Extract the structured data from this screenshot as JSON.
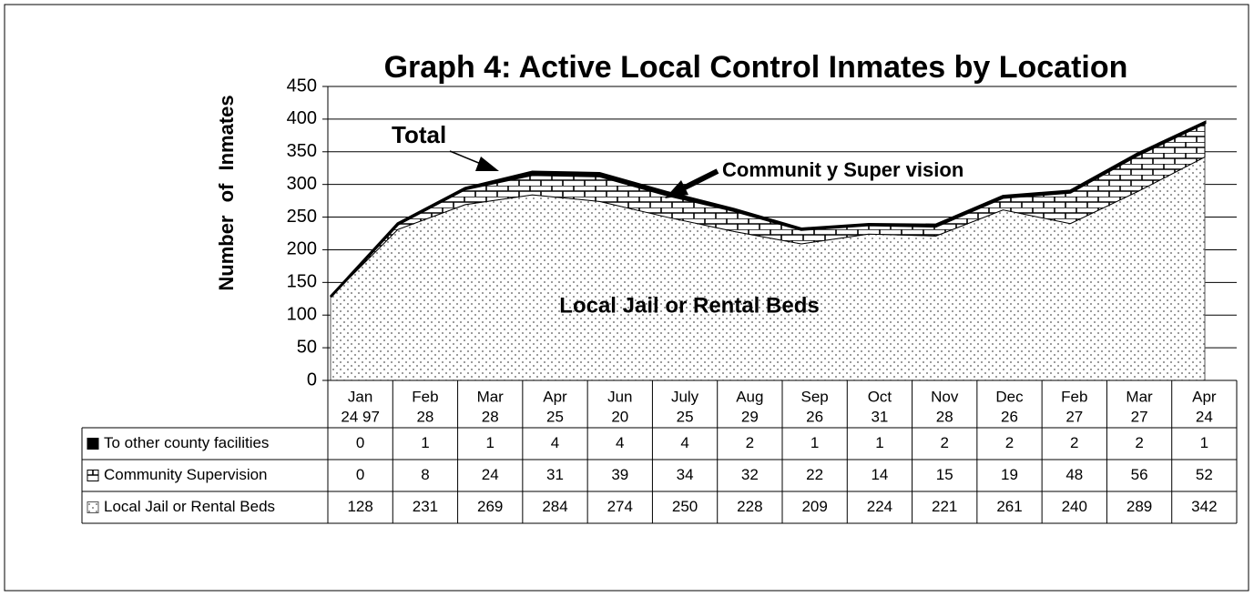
{
  "chart_data": {
    "type": "stacked_area",
    "title": "Graph 4: Active Local Control Inmates by Location",
    "y_label": "Number of Inmates",
    "annotations": [
      "Total",
      "Communit y Super vision",
      "Local Jail or Rental Beds"
    ],
    "categories": [
      [
        "Jan",
        "24 97"
      ],
      [
        "Feb",
        "28"
      ],
      [
        "Mar",
        "28"
      ],
      [
        "Apr",
        "25"
      ],
      [
        "Jun",
        "20"
      ],
      [
        "July",
        "25"
      ],
      [
        "Aug",
        "29"
      ],
      [
        "Sep",
        "26"
      ],
      [
        "Oct",
        "31"
      ],
      [
        "Nov",
        "28"
      ],
      [
        "Dec",
        "26"
      ],
      [
        "Feb",
        "27"
      ],
      [
        "Mar",
        "27"
      ],
      [
        "Apr",
        "24"
      ]
    ],
    "series": [
      {
        "name": "To other county facilities",
        "color": "#000000",
        "pattern": "solid",
        "values": [
          0,
          1,
          1,
          4,
          4,
          4,
          2,
          1,
          1,
          2,
          2,
          2,
          2,
          1
        ]
      },
      {
        "name": "Community Supervision",
        "color": "#000000",
        "pattern": "bricks",
        "values": [
          0,
          8,
          24,
          31,
          39,
          34,
          32,
          22,
          14,
          15,
          19,
          48,
          56,
          52
        ]
      },
      {
        "name": "Local Jail or Rental Beds",
        "color": "#555555",
        "pattern": "dots",
        "values": [
          128,
          231,
          269,
          284,
          274,
          250,
          228,
          209,
          224,
          221,
          261,
          240,
          289,
          342
        ]
      }
    ],
    "ylim": [
      0,
      450
    ],
    "yticks": [
      0,
      50,
      100,
      150,
      200,
      250,
      300,
      350,
      400,
      450
    ],
    "grid": true
  }
}
